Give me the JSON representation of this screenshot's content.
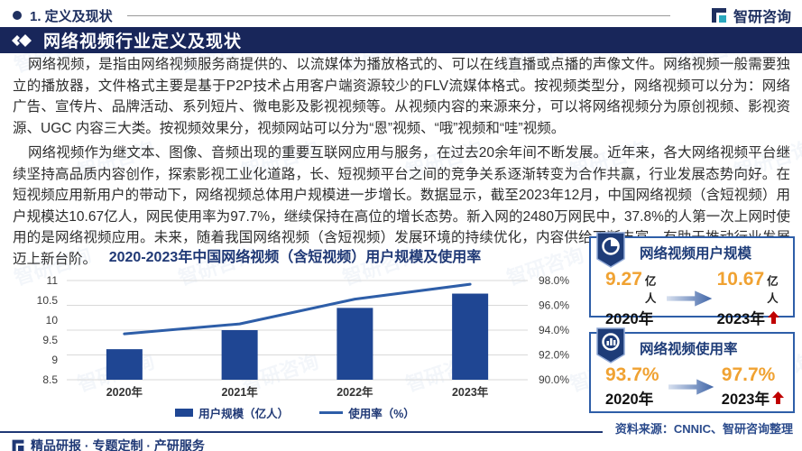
{
  "header": {
    "section_label": "1. 定义及现状",
    "brand": "智研咨询"
  },
  "banner": {
    "title": "网络视频行业定义及现状"
  },
  "paragraphs": {
    "p1": "网络视频，是指由网络视频服务商提供的、以流媒体为播放格式的、可以在线直播或点播的声像文件。网络视频一般需要独立的播放器，文件格式主要是基于P2P技术占用客户端资源较少的FLV流媒体格式。按视频类型分，网络视频可以分为：网络广告、宣传片、品牌活动、系列短片、微电影及影视视频等。从视频内容的来源来分，可以将网络视频分为原创视频、影视资源、UGC 内容三大类。按视频效果分，视频网站可以分为“恩”视频、“哦”视频和“哇”视频。",
    "p2": "网络视频作为继文本、图像、音频出现的重要互联网应用与服务，在过去20余年间不断发展。近年来，各大网络视频平台继续坚持高品质内容创作，探索影视工业化道路，长、短视频平台之间的竞争关系逐渐转变为合作共赢，行业发展态势向好。在短视频应用新用户的带动下，网络视频总体用户规模进一步增长。数据显示，截至2023年12月，中国网络视频（含短视频）用户规模达10.67亿人，网民使用率为97.7%，继续保持在高位的增长态势。新入网的2480万网民中，37.8%的人第一次上网时使用的是网络视频应用。未来，随着我国网络视频（含短视频）发展环境的持续优化，内容供给不断丰富，有助于推动行业发展迈上新台阶。"
  },
  "chart_data": {
    "type": "bar+line",
    "title": "2020-2023年中国网络视频（含短视频）用户规模及使用率",
    "categories": [
      "2020年",
      "2021年",
      "2022年",
      "2023年"
    ],
    "series": [
      {
        "name": "用户规模（亿人）",
        "type": "bar",
        "axis": "left",
        "color": "#1F4693",
        "values": [
          9.27,
          9.75,
          10.31,
          10.67
        ]
      },
      {
        "name": "使用率（%）",
        "type": "line",
        "axis": "right",
        "color": "#2E5EA8",
        "values": [
          93.7,
          94.5,
          96.5,
          97.7
        ]
      }
    ],
    "left_axis": {
      "min": 8.5,
      "max": 11,
      "step": 0.5
    },
    "right_axis": {
      "min": 90,
      "max": 98,
      "step": 2,
      "suffix": "%",
      "decimals": 1
    },
    "grid": true,
    "legend_position": "bottom"
  },
  "cards": [
    {
      "title": "网络视频用户规模",
      "from_value": "9.27",
      "from_unit": "亿人",
      "from_year": "2020年",
      "to_value": "10.67",
      "to_unit": "亿人",
      "to_year": "2023年"
    },
    {
      "title": "网络视频使用率",
      "from_value": "93.7%",
      "from_unit": "",
      "from_year": "2020年",
      "to_value": "97.7%",
      "to_unit": "",
      "to_year": "2023年"
    }
  ],
  "source_note": "资料来源：CNNIC、智研咨询整理",
  "footer": {
    "services": "精品研报 · 专题定制 · 产研服务"
  },
  "watermark": {
    "text": "智研咨询"
  },
  "colors": {
    "banner_bg": "#18265A",
    "navy": "#1F3875",
    "bar": "#1F4693",
    "line": "#2E5EA8",
    "card_border": "#2E5EA8",
    "accent_orange": "#F0A232",
    "up_arrow_red": "#C00000",
    "logo_teal": "#2AA8BE"
  }
}
